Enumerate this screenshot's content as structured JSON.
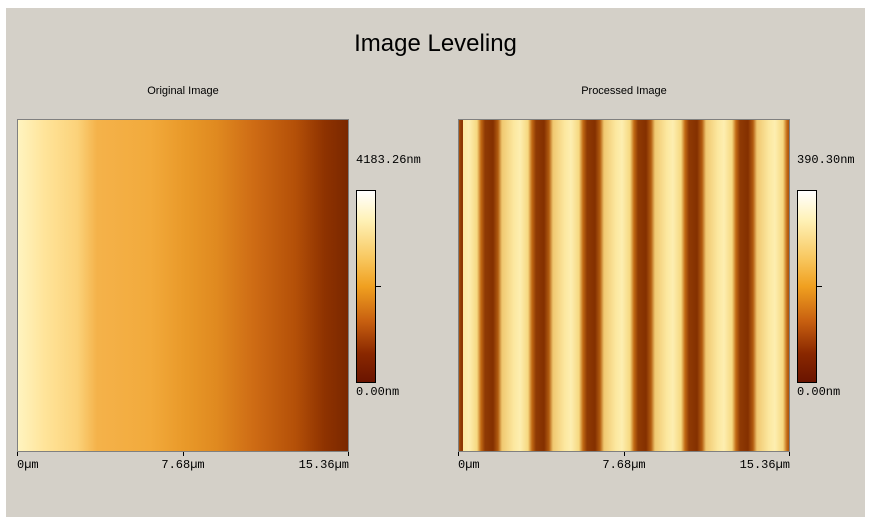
{
  "title": "Image Leveling",
  "panels": [
    {
      "title": "Original Image",
      "colorbar": {
        "max": "4183.26nm",
        "min": "0.00nm"
      },
      "x_axis": [
        "0µm",
        "7.68µm",
        "15.36µm"
      ]
    },
    {
      "title": "Processed Image",
      "colorbar": {
        "max": "390.30nm",
        "min": "0.00nm"
      },
      "x_axis": [
        "0µm",
        "7.68µm",
        "15.36µm"
      ]
    }
  ]
}
